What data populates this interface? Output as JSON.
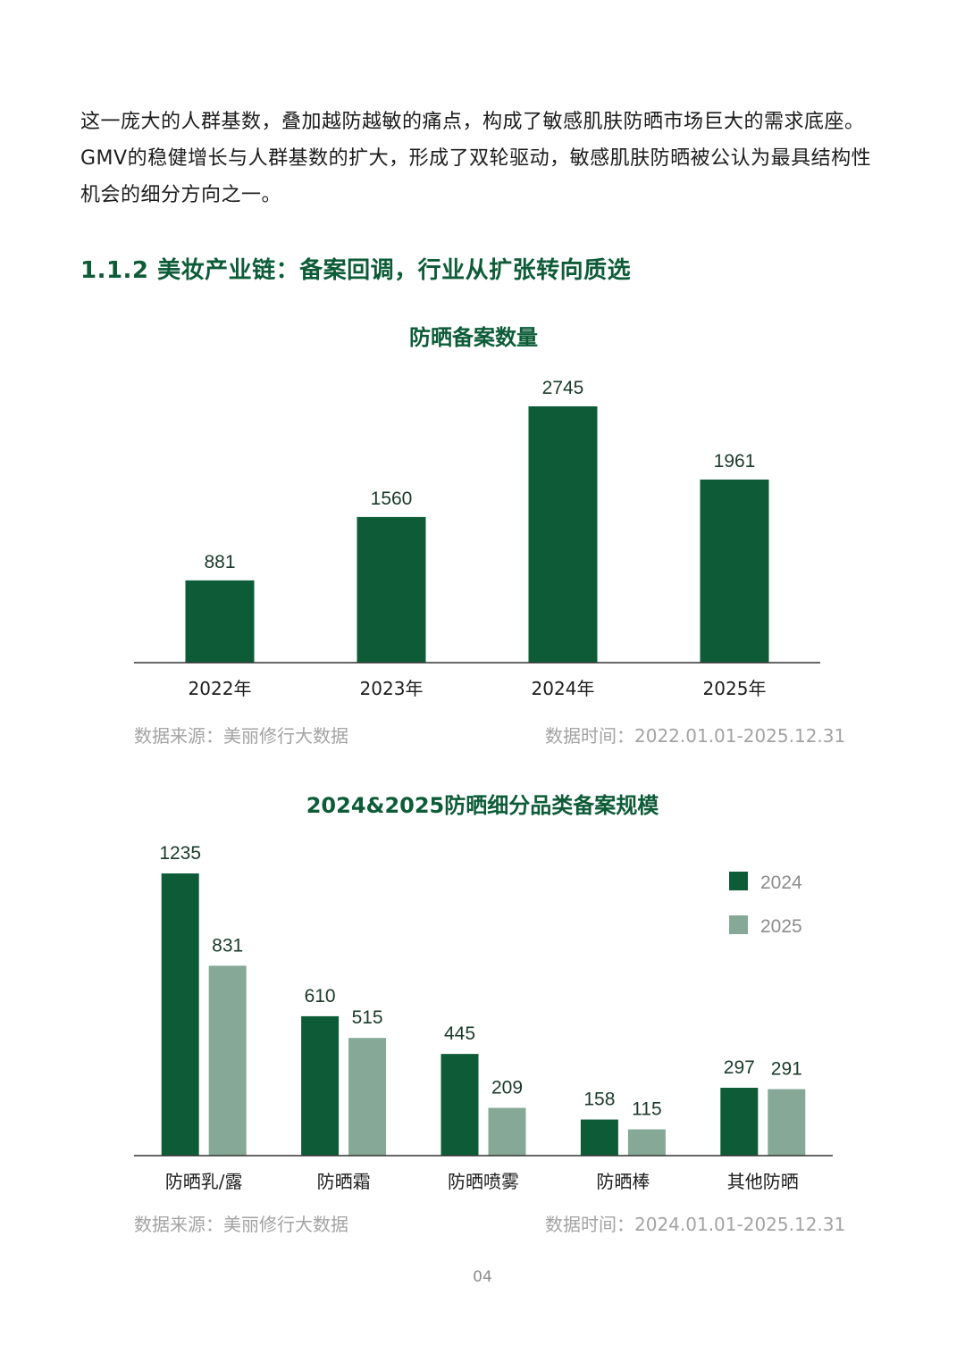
{
  "paragraph": {
    "text": "这一庞大的人群基数，叠加越防越敏的痛点，构成了敏感肌肤防晒市场巨大的需求底座。GMV的稳健增长与人群基数的扩大，形成了双轮驱动，敏感肌肤防晒被公认为最具结构性机会的细分方向之一。"
  },
  "section": {
    "heading": "1.1.2 美妆产业链：备案回调，行业从扩张转向质选"
  },
  "chart1": {
    "source": "数据来源：美丽修行大数据",
    "period": "数据时间：2022.01.01-2025.12.31"
  },
  "chart2": {
    "source": "数据来源：美丽修行大数据",
    "period": "数据时间：2024.01.01-2025.12.31"
  },
  "page": {
    "number": "04"
  },
  "colors": {
    "dark_green": "#0d5c37",
    "light_green": "#85a996",
    "axis": "#333333"
  },
  "chart_data": [
    {
      "type": "bar",
      "title": "防晒备案数量",
      "categories": [
        "2022年",
        "2023年",
        "2024年",
        "2025年"
      ],
      "values": [
        881,
        1560,
        2745,
        1961
      ],
      "ylim": [
        0,
        2745
      ],
      "grid": false,
      "data_labels": true
    },
    {
      "type": "bar",
      "title": "2024&2025防晒细分品类备案规模",
      "categories": [
        "防晒乳/露",
        "防晒霜",
        "防晒喷雾",
        "防晒棒",
        "其他防晒"
      ],
      "series": [
        {
          "name": "2024",
          "values": [
            1235,
            610,
            445,
            158,
            297
          ]
        },
        {
          "name": "2025",
          "values": [
            831,
            515,
            209,
            115,
            291
          ]
        }
      ],
      "ylim": [
        0,
        1235
      ],
      "grid": false,
      "legend": "top-right",
      "data_labels": true
    }
  ]
}
